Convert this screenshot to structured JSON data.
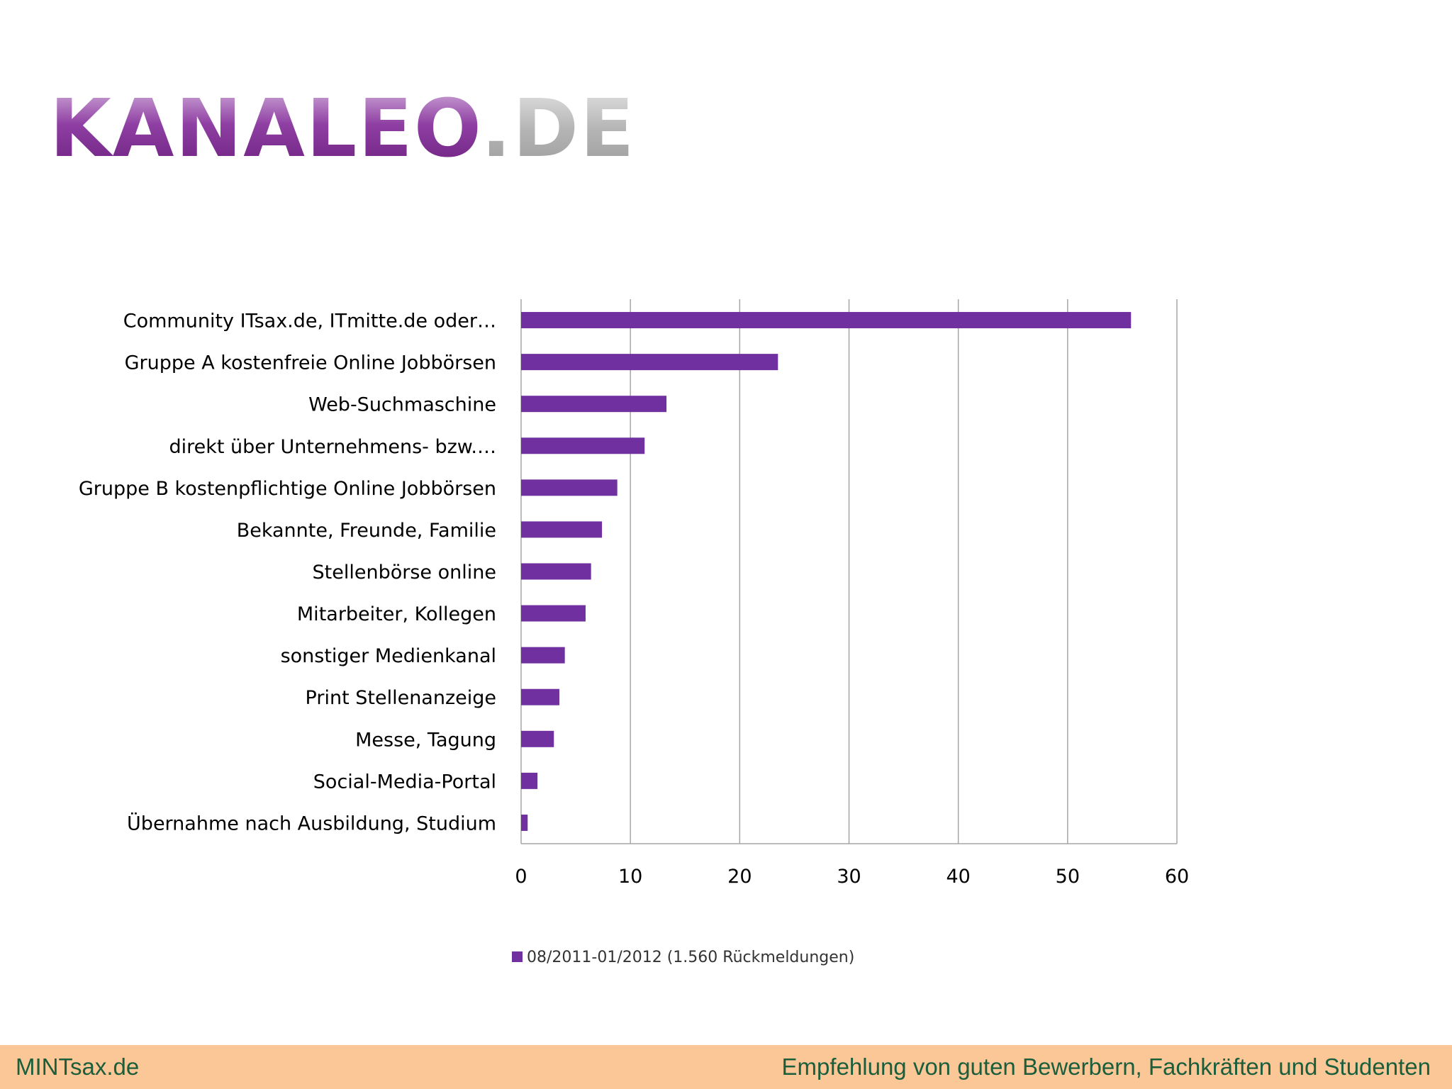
{
  "logo": {
    "text_main": "KANALEO",
    "text_suffix": ".DE",
    "main_color": "#7a2d8c",
    "suffix_color": "#a7a7a7"
  },
  "footer": {
    "left": "MINTsax.de",
    "right": "Empfehlung von guten Bewerbern, Fachkräften und Studenten",
    "background": "#fcc797",
    "text_color": "#1a5e3c"
  },
  "chart_data": {
    "type": "bar",
    "orientation": "horizontal",
    "categories": [
      "Community ITsax.de, ITmitte.de oder…",
      "Gruppe A kostenfreie Online Jobbörsen",
      "Web-Suchmaschine",
      "direkt über Unternehmens- bzw.…",
      "Gruppe B kostenpflichtige Online Jobbörsen",
      "Bekannte, Freunde, Familie",
      "Stellenbörse online",
      "Mitarbeiter, Kollegen",
      "sonstiger Medienkanal",
      "Print Stellenanzeige",
      "Messe, Tagung",
      "Social-Media-Portal",
      "Übernahme nach Ausbildung, Studium"
    ],
    "series": [
      {
        "name": "08/2011-01/2012 (1.560 Rückmeldungen)",
        "color": "#7030a0",
        "values": [
          55.8,
          23.5,
          13.3,
          11.3,
          8.8,
          7.4,
          6.4,
          5.9,
          4.0,
          3.5,
          3.0,
          1.5,
          0.6
        ]
      }
    ],
    "xlim": [
      0,
      60
    ],
    "xticks": [
      0,
      10,
      20,
      30,
      40,
      50,
      60
    ],
    "grid": true,
    "legend": "bottom"
  }
}
